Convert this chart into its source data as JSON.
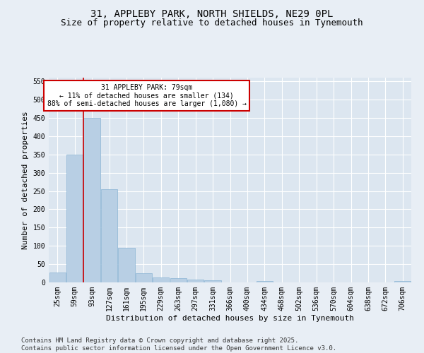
{
  "title": "31, APPLEBY PARK, NORTH SHIELDS, NE29 0PL",
  "subtitle": "Size of property relative to detached houses in Tynemouth",
  "xlabel": "Distribution of detached houses by size in Tynemouth",
  "ylabel": "Number of detached properties",
  "categories": [
    "25sqm",
    "59sqm",
    "93sqm",
    "127sqm",
    "161sqm",
    "195sqm",
    "229sqm",
    "263sqm",
    "297sqm",
    "331sqm",
    "366sqm",
    "400sqm",
    "434sqm",
    "468sqm",
    "502sqm",
    "536sqm",
    "570sqm",
    "604sqm",
    "638sqm",
    "672sqm",
    "706sqm"
  ],
  "values": [
    28,
    350,
    450,
    255,
    95,
    25,
    14,
    12,
    7,
    5,
    0,
    0,
    4,
    0,
    0,
    0,
    0,
    0,
    0,
    0,
    4
  ],
  "bar_color": "#b8cfe4",
  "bar_edge_color": "#8ab4d4",
  "background_color": "#dce6f0",
  "fig_background_color": "#e8eef5",
  "grid_color": "#ffffff",
  "vline_x": 1.5,
  "vline_color": "#cc0000",
  "ylim": [
    0,
    560
  ],
  "yticks": [
    0,
    50,
    100,
    150,
    200,
    250,
    300,
    350,
    400,
    450,
    500,
    550
  ],
  "annotation_text": "31 APPLEBY PARK: 79sqm\n← 11% of detached houses are smaller (134)\n88% of semi-detached houses are larger (1,080) →",
  "annotation_box_color": "#ffffff",
  "annotation_box_edge": "#cc0000",
  "footer_line1": "Contains HM Land Registry data © Crown copyright and database right 2025.",
  "footer_line2": "Contains public sector information licensed under the Open Government Licence v3.0.",
  "title_fontsize": 10,
  "subtitle_fontsize": 9,
  "tick_fontsize": 7,
  "ylabel_fontsize": 8,
  "xlabel_fontsize": 8,
  "footer_fontsize": 6.5
}
